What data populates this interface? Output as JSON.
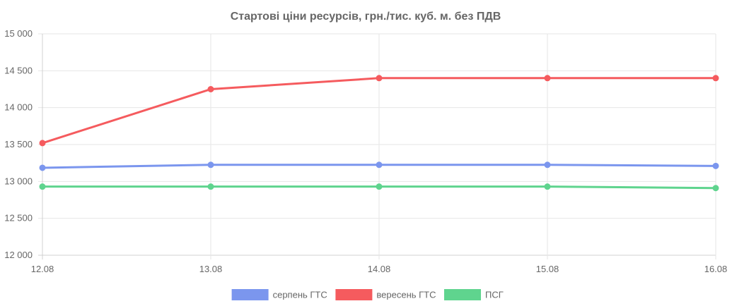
{
  "chart_data": {
    "type": "line",
    "title": "Стартові ціни ресурсів, грн./тис. куб. м. без ПДВ",
    "xlabel": "",
    "ylabel": "",
    "categories": [
      "12.08",
      "13.08",
      "14.08",
      "15.08",
      "16.08"
    ],
    "ylim": [
      12000,
      15000
    ],
    "yticks": [
      12000,
      12500,
      13000,
      13500,
      14000,
      14500,
      15000
    ],
    "ytick_labels": [
      "12 000",
      "12 500",
      "13 000",
      "13 500",
      "14 000",
      "14 500",
      "15 000"
    ],
    "grid": true,
    "legend_position": "bottom",
    "series": [
      {
        "name": "серпень ГТС",
        "color": "#7b96ee",
        "values": [
          13185,
          13225,
          13225,
          13225,
          13210
        ]
      },
      {
        "name": "вересень ГТС",
        "color": "#f55b5e",
        "values": [
          13520,
          14250,
          14400,
          14400,
          14400
        ]
      },
      {
        "name": "ПСГ",
        "color": "#5fd48e",
        "values": [
          12930,
          12930,
          12930,
          12930,
          12910
        ]
      }
    ]
  }
}
